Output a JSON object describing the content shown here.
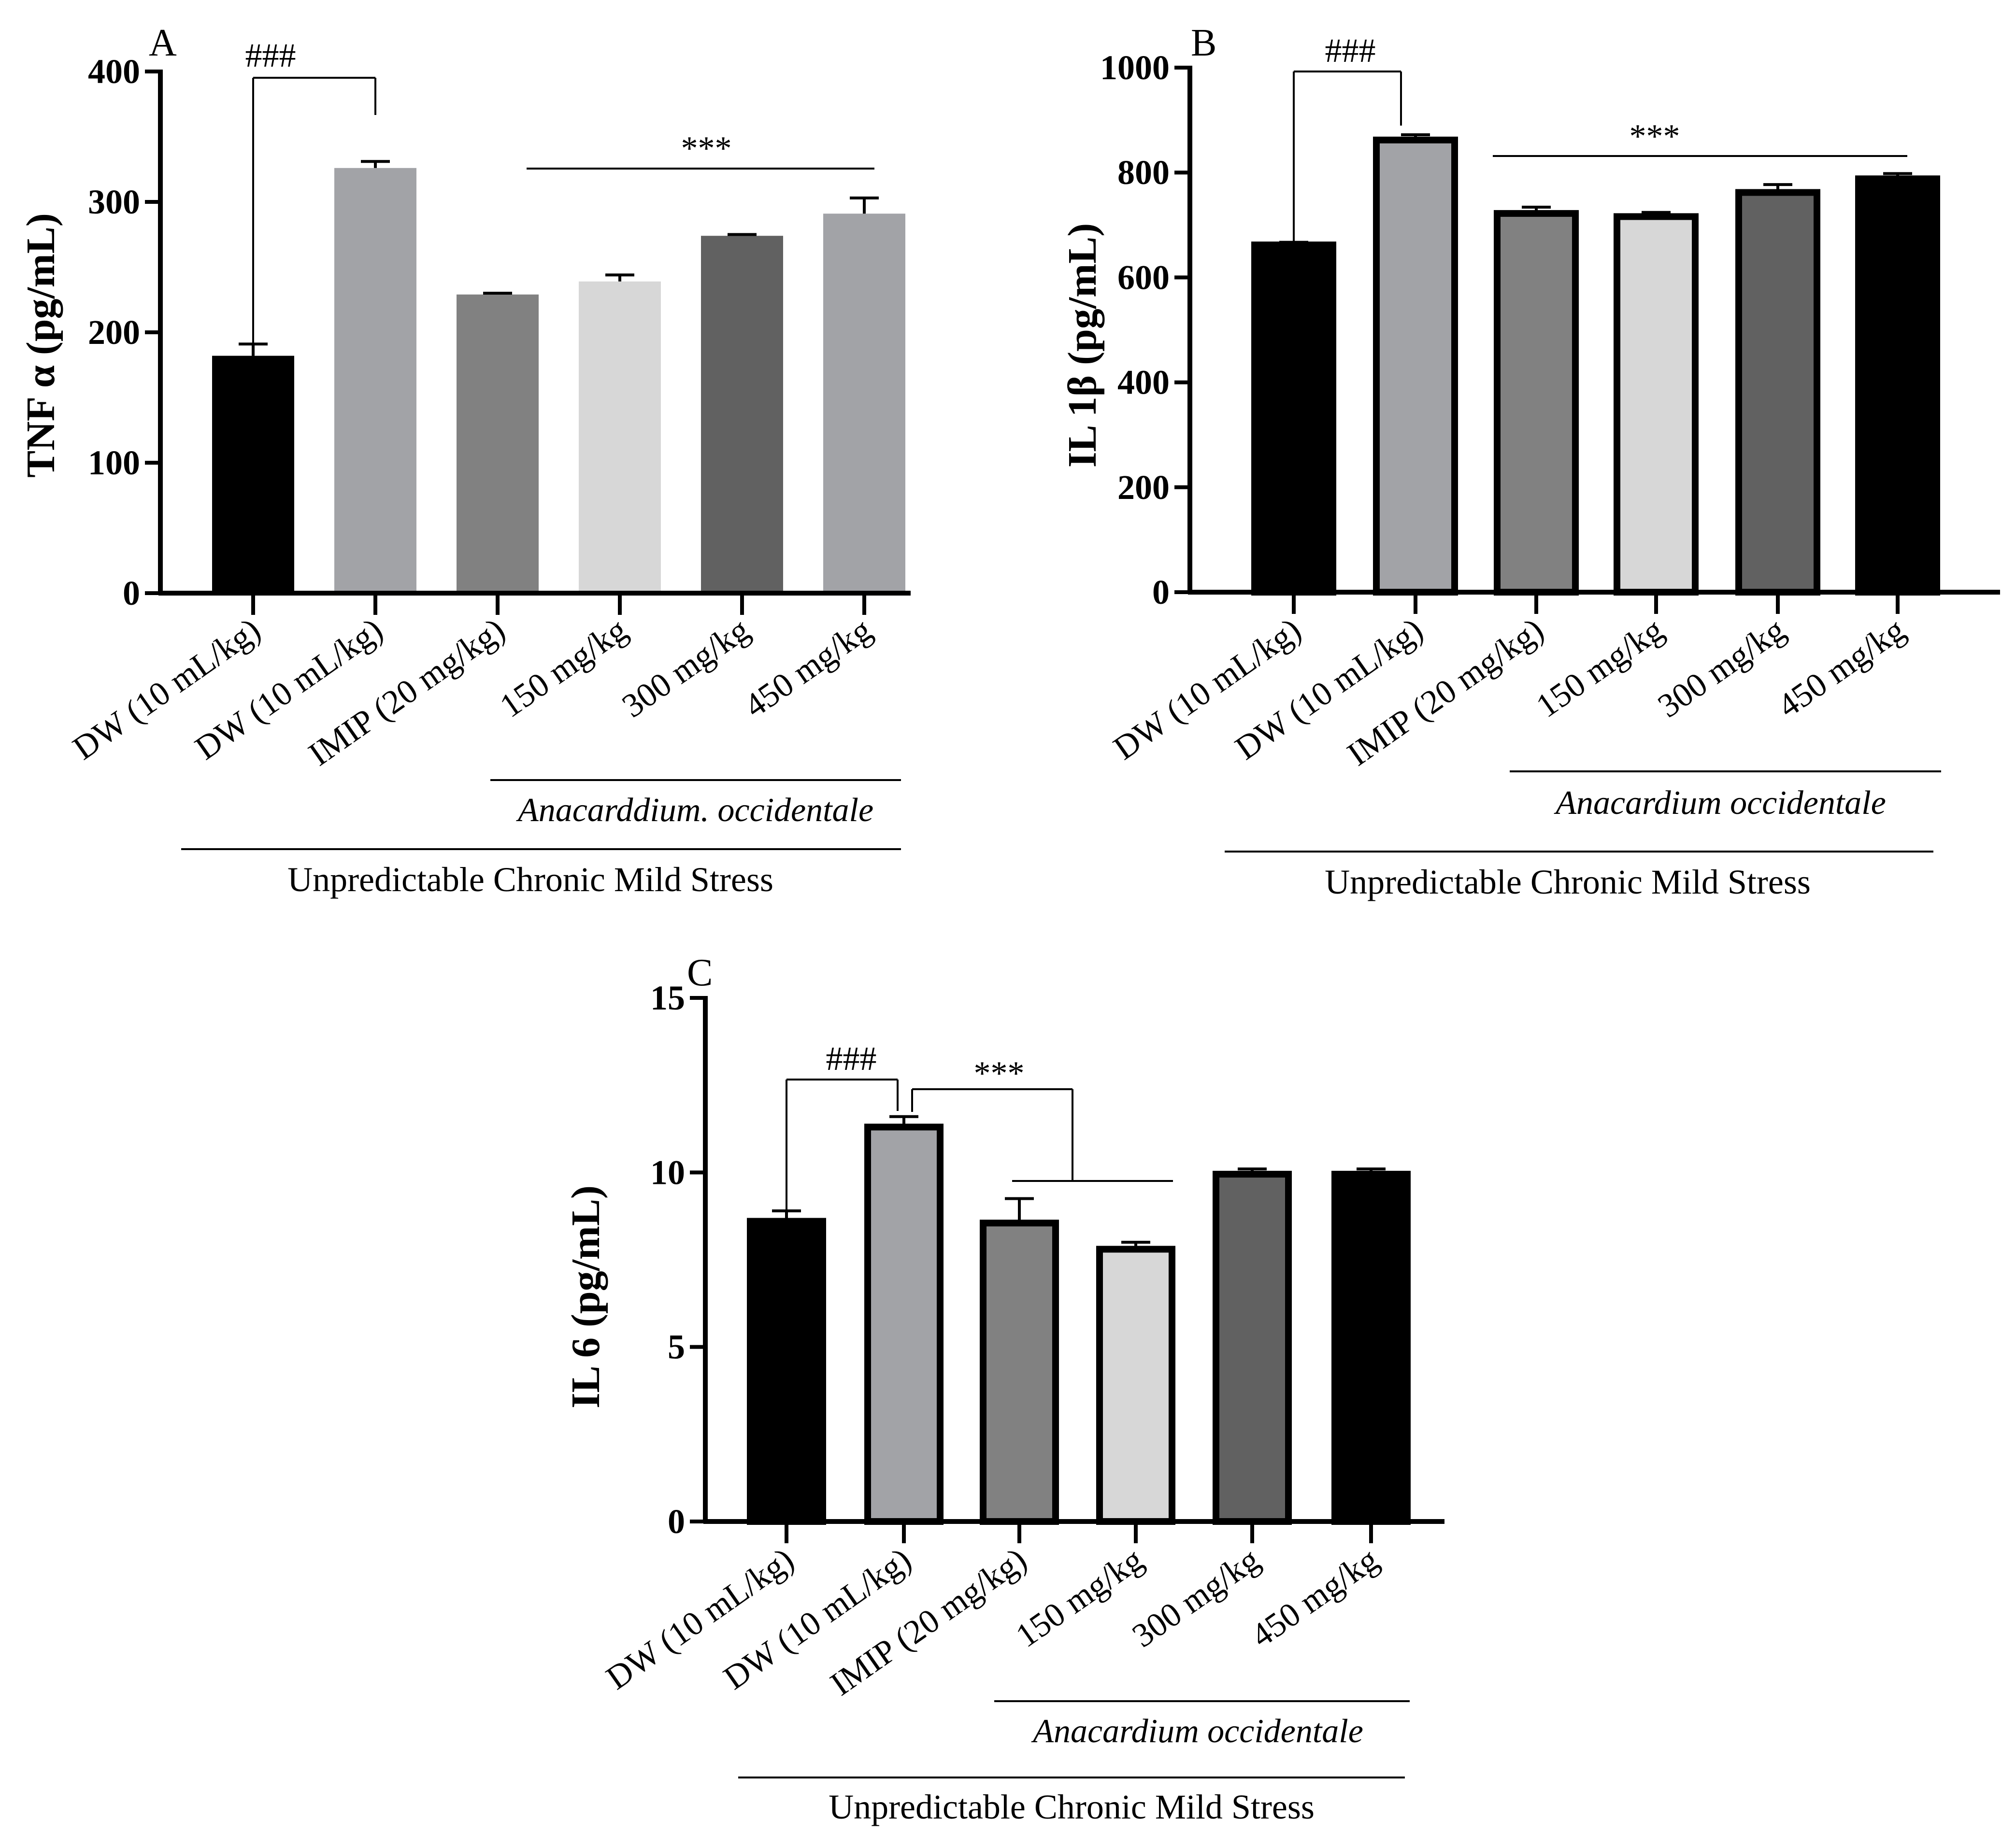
{
  "colors": {
    "black": "#000000",
    "light_grey": "#a2a3a7",
    "mid_grey": "#818181",
    "pale_grey": "#d7d7d7",
    "dark_grey": "#616161"
  },
  "chart_data": [
    {
      "panel": "A",
      "type": "bar",
      "ylabel": "TNF α (pg/mL)",
      "ylim": [
        0,
        400
      ],
      "yticks": [
        "0",
        "100",
        "200",
        "300",
        "400"
      ],
      "bar_outline": false,
      "categories": [
        "DW (10 mL/kg)",
        "DW (10 mL/kg)",
        "IMIP (20 mg/kg)",
        "150 mg/kg",
        "300 mg/kg",
        "450 mg/kg"
      ],
      "values": [
        182,
        326,
        229,
        239,
        274,
        291
      ],
      "errors": [
        9,
        5,
        1,
        5,
        1,
        12
      ],
      "fill_colors": [
        "black",
        "light_grey",
        "mid_grey",
        "pale_grey",
        "dark_grey",
        "light_grey"
      ],
      "comparison_label": "###",
      "significance_label": "***",
      "species_label": "Anacarddium. occidentale",
      "group_label": "Unpredictable Chronic Mild Stress"
    },
    {
      "panel": "B",
      "type": "bar",
      "ylabel": "IL 1β (pg/mL)",
      "ylim": [
        0,
        1000
      ],
      "yticks": [
        "0",
        "200",
        "400",
        "600",
        "800",
        "1000"
      ],
      "bar_outline": true,
      "categories": [
        "DW (10 mL/kg)",
        "DW (10 mL/kg)",
        "IMIP (20 mg/kg)",
        "150 mg/kg",
        "300 mg/kg",
        "450 mg/kg"
      ],
      "values": [
        662,
        862,
        722,
        716,
        762,
        788
      ],
      "errors": [
        5,
        10,
        12,
        8,
        15,
        10
      ],
      "fill_colors": [
        "black",
        "light_grey",
        "mid_grey",
        "pale_grey",
        "dark_grey",
        "black"
      ],
      "comparison_label": "###",
      "significance_label": "***",
      "species_label": "Anacardium occidentale",
      "group_label": "Unpredictable Chronic Mild Stress"
    },
    {
      "panel": "C",
      "type": "bar",
      "ylabel": "IL 6 (pg/mL)",
      "ylim": [
        0,
        15
      ],
      "yticks": [
        "0",
        "5",
        "10",
        "15"
      ],
      "bar_outline": true,
      "categories": [
        "DW (10 mL/kg)",
        "DW (10 mL/kg)",
        "IMIP (20 mg/kg)",
        "150 mg/kg",
        "300 mg/kg",
        "450 mg/kg"
      ],
      "values": [
        8.6,
        11.3,
        8.55,
        7.8,
        9.95,
        9.95
      ],
      "errors": [
        0.3,
        0.3,
        0.7,
        0.2,
        0.15,
        0.15
      ],
      "fill_colors": [
        "black",
        "light_grey",
        "mid_grey",
        "pale_grey",
        "dark_grey",
        "black"
      ],
      "comparison_label": "###",
      "significance_label": "***",
      "species_label": "Anacardium occidentale",
      "group_label": "Unpredictable Chronic Mild Stress"
    }
  ]
}
